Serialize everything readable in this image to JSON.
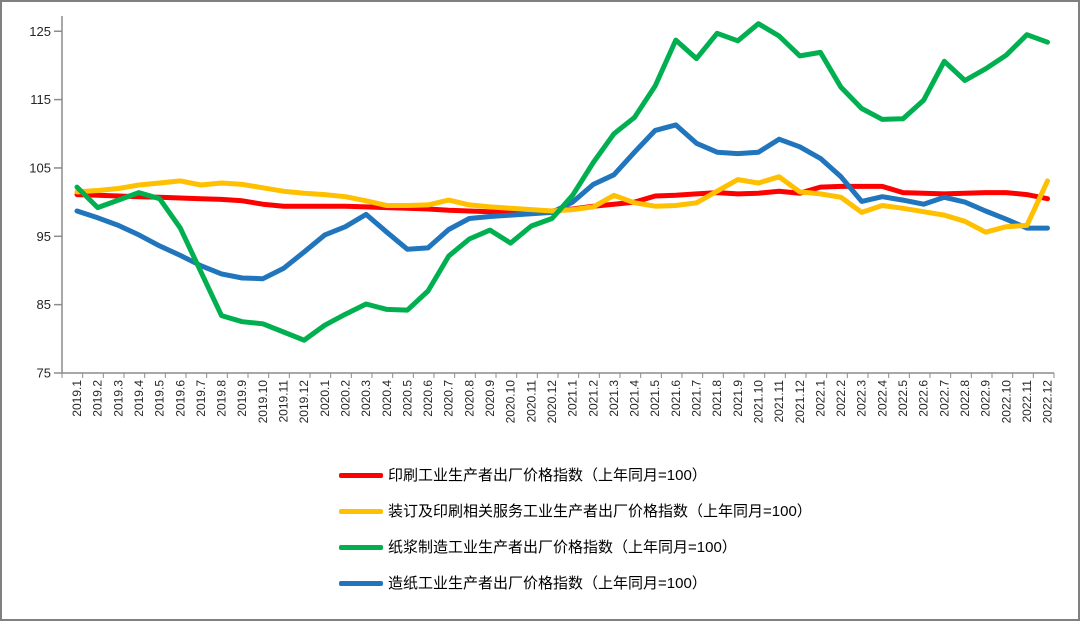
{
  "window": {
    "background": "#FFFFFF",
    "border_color": "#808080",
    "axis_color": "#8C8C8C",
    "tick_label_color": "#262626"
  },
  "chart_data": {
    "type": "line",
    "title": "",
    "xlabel": "",
    "ylabel": "",
    "grid": false,
    "legend_position": "bottom-center",
    "y_axis": {
      "min": 75,
      "max": 125,
      "tick_interval": 10,
      "ticks": [
        75,
        85,
        95,
        105,
        115,
        125
      ]
    },
    "x": [
      "2019.1",
      "2019.2",
      "2019.3",
      "2019.4",
      "2019.5",
      "2019.6",
      "2019.7",
      "2019.8",
      "2019.9",
      "2019.10",
      "2019.11",
      "2019.12",
      "2020.1",
      "2020.2",
      "2020.3",
      "2020.4",
      "2020.5",
      "2020.6",
      "2020.7",
      "2020.8",
      "2020.9",
      "2020.10",
      "2020.11",
      "2020.12",
      "2021.1",
      "2021.2",
      "2021.3",
      "2021.4",
      "2021.5",
      "2021.6",
      "2021.7",
      "2021.8",
      "2021.9",
      "2021.10",
      "2021.11",
      "2021.12",
      "2022.1",
      "2022.2",
      "2022.3",
      "2022.4",
      "2022.5",
      "2022.6",
      "2022.7",
      "2022.8",
      "2022.9",
      "2022.10",
      "2022.11",
      "2022.12"
    ],
    "series": [
      {
        "name": "印刷工业生产者出厂价格指数（上年同月=100）",
        "color": "#FF0000",
        "values": [
          101.1,
          101.0,
          100.9,
          100.8,
          100.7,
          100.6,
          100.5,
          100.4,
          100.2,
          99.7,
          99.4,
          99.4,
          99.4,
          99.4,
          99.3,
          99.2,
          99.1,
          99.0,
          98.8,
          98.7,
          98.6,
          98.5,
          98.6,
          98.7,
          99.0,
          99.4,
          99.7,
          100.0,
          100.9,
          101.0,
          101.2,
          101.4,
          101.2,
          101.3,
          101.6,
          101.3,
          102.2,
          102.3,
          102.3,
          102.3,
          101.4,
          101.3,
          101.2,
          101.3,
          101.4,
          101.4,
          101.1,
          100.5
        ]
      },
      {
        "name": "装订及印刷相关服务工业生产者出厂价格指数（上年同月=100）",
        "color": "#FFC000",
        "values": [
          101.5,
          101.7,
          102.0,
          102.5,
          102.8,
          103.1,
          102.5,
          102.8,
          102.6,
          102.1,
          101.6,
          101.3,
          101.1,
          100.8,
          100.2,
          99.5,
          99.5,
          99.6,
          100.3,
          99.6,
          99.3,
          99.1,
          98.9,
          98.7,
          98.9,
          99.3,
          101.0,
          99.9,
          99.4,
          99.5,
          99.9,
          101.6,
          103.3,
          102.8,
          103.7,
          101.5,
          101.2,
          100.7,
          98.5,
          99.5,
          99.1,
          98.6,
          98.1,
          97.2,
          95.6,
          96.4,
          96.6,
          103.1
        ]
      },
      {
        "name": "纸浆制造工业生产者出厂价格指数（上年同月=100）",
        "color": "#00B050",
        "values": [
          102.2,
          99.2,
          100.3,
          101.4,
          100.5,
          96.2,
          89.8,
          83.4,
          82.5,
          82.2,
          81.0,
          79.8,
          82.0,
          83.6,
          85.1,
          84.3,
          84.2,
          87.0,
          92.1,
          94.6,
          95.9,
          94.0,
          96.5,
          97.6,
          101.0,
          105.8,
          110.0,
          112.4,
          117.0,
          123.7,
          121.0,
          124.7,
          123.6,
          126.1,
          124.3,
          121.4,
          121.9,
          116.8,
          113.7,
          112.1,
          112.2,
          114.9,
          120.6,
          117.8,
          119.5,
          121.5,
          124.5,
          123.4
        ]
      },
      {
        "name": "造纸工业生产者出厂价格指数（上年同月=100）",
        "color": "#2175BC",
        "values": [
          98.7,
          97.7,
          96.6,
          95.2,
          93.6,
          92.2,
          90.7,
          89.5,
          88.9,
          88.8,
          90.3,
          92.7,
          95.2,
          96.4,
          98.2,
          95.6,
          93.1,
          93.3,
          96.0,
          97.6,
          97.9,
          98.1,
          98.3,
          98.5,
          100.0,
          102.6,
          104.0,
          107.3,
          110.5,
          111.3,
          108.6,
          107.3,
          107.1,
          107.3,
          109.2,
          108.1,
          106.4,
          103.7,
          100.1,
          100.8,
          100.3,
          99.7,
          100.7,
          100.0,
          98.7,
          97.5,
          96.2,
          96.2
        ]
      }
    ]
  }
}
